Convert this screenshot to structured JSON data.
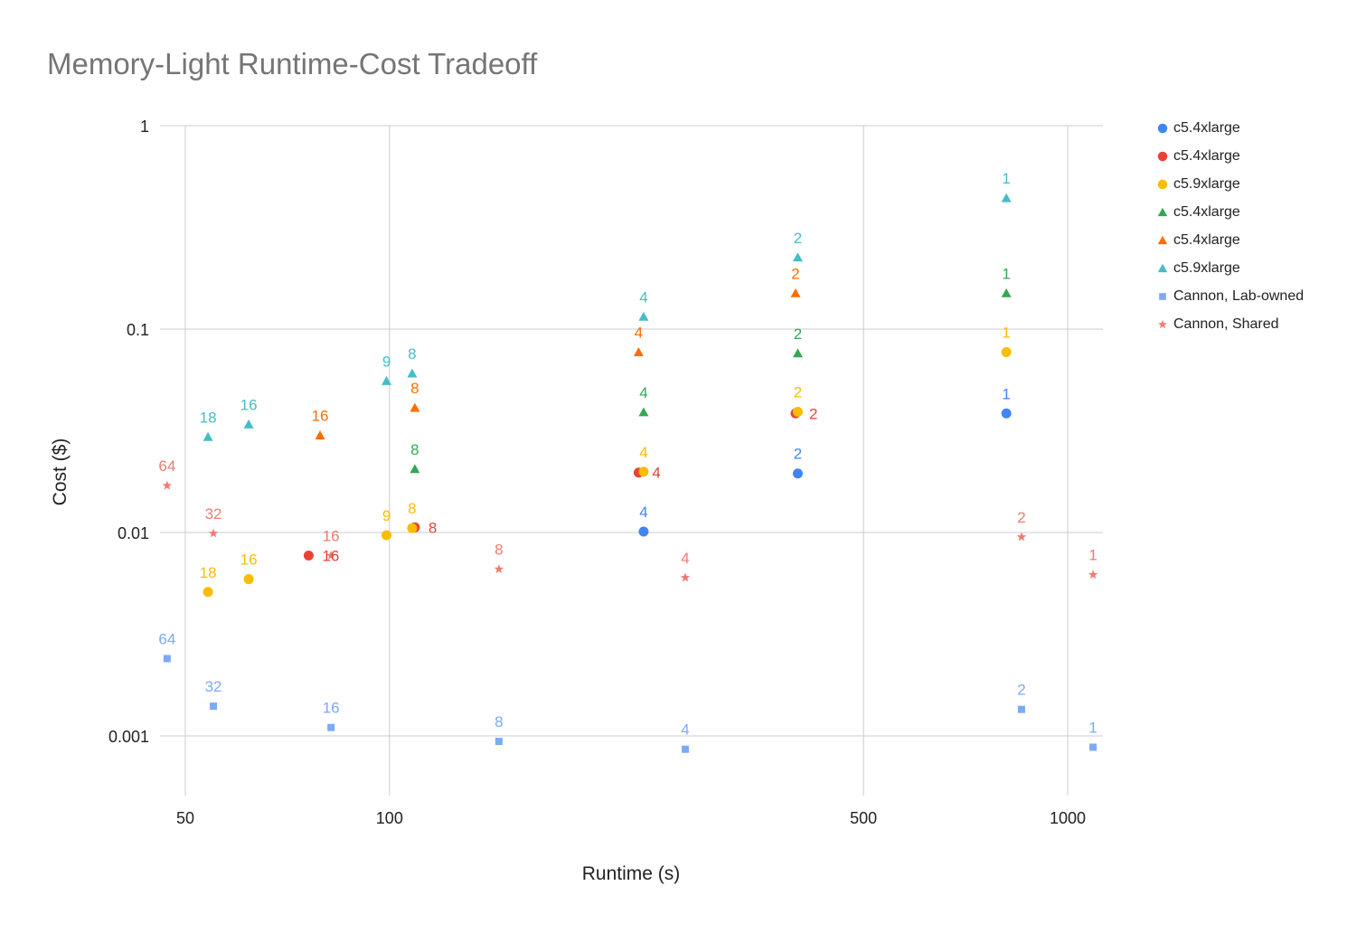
{
  "chart_data": {
    "type": "scatter",
    "title": "Memory-Light Runtime-Cost Tradeoff",
    "xlabel": "Runtime (s)",
    "ylabel": "Cost ($)",
    "x_scale": "log",
    "y_scale": "log",
    "xlim": [
      45,
      1100
    ],
    "ylim": [
      0.0005,
      1
    ],
    "x_ticks": [
      {
        "value": 50,
        "label": "50"
      },
      {
        "value": 100,
        "label": "100"
      },
      {
        "value": 500,
        "label": "500"
      },
      {
        "value": 1000,
        "label": "1000"
      }
    ],
    "y_ticks": [
      {
        "value": 0.001,
        "label": "0.001"
      },
      {
        "value": 0.01,
        "label": "0.01"
      },
      {
        "value": 0.1,
        "label": "0.1"
      },
      {
        "value": 1,
        "label": "1"
      }
    ],
    "grid": true,
    "legend_position": "right",
    "series": [
      {
        "name": "c5.4xlarge",
        "marker": "circle",
        "color": "#4285f4",
        "points": [
          {
            "x": 237,
            "y": 0.0101,
            "label": "4",
            "label_pos": "above"
          },
          {
            "x": 400,
            "y": 0.0195,
            "label": "2",
            "label_pos": "above"
          },
          {
            "x": 812,
            "y": 0.0385,
            "label": "1",
            "label_pos": "above"
          }
        ]
      },
      {
        "name": "c5.4xlarge",
        "marker": "circle",
        "color": "#ea4335",
        "points": [
          {
            "x": 76,
            "y": 0.0077,
            "label": "16",
            "label_pos": "right"
          },
          {
            "x": 109,
            "y": 0.0106,
            "label": "8",
            "label_pos": "right"
          },
          {
            "x": 233,
            "y": 0.0197,
            "label": "4",
            "label_pos": "right"
          },
          {
            "x": 397,
            "y": 0.0385,
            "label": "2",
            "label_pos": "right"
          }
        ]
      },
      {
        "name": "c5.9xlarge",
        "marker": "circle",
        "color": "#fbbc04",
        "points": [
          {
            "x": 54,
            "y": 0.0051,
            "label": "18",
            "label_pos": "above"
          },
          {
            "x": 62,
            "y": 0.0059,
            "label": "16",
            "label_pos": "above"
          },
          {
            "x": 99,
            "y": 0.0097,
            "label": "9",
            "label_pos": "above"
          },
          {
            "x": 108,
            "y": 0.0105,
            "label": "8",
            "label_pos": "above"
          },
          {
            "x": 237,
            "y": 0.0199,
            "label": "4",
            "label_pos": "above"
          },
          {
            "x": 400,
            "y": 0.0392,
            "label": "2",
            "label_pos": "above"
          },
          {
            "x": 812,
            "y": 0.077,
            "label": "1",
            "label_pos": "above"
          }
        ]
      },
      {
        "name": "c5.4xlarge",
        "marker": "triangle",
        "color": "#34a853",
        "points": [
          {
            "x": 109,
            "y": 0.0205,
            "label": "8",
            "label_pos": "above"
          },
          {
            "x": 237,
            "y": 0.039,
            "label": "4",
            "label_pos": "above"
          },
          {
            "x": 400,
            "y": 0.076,
            "label": "2",
            "label_pos": "above"
          },
          {
            "x": 812,
            "y": 0.15,
            "label": "1",
            "label_pos": "above"
          }
        ]
      },
      {
        "name": "c5.4xlarge",
        "marker": "triangle",
        "color": "#ff6d01",
        "points": [
          {
            "x": 79,
            "y": 0.03,
            "label": "16",
            "label_pos": "above"
          },
          {
            "x": 109,
            "y": 0.041,
            "label": "8",
            "label_pos": "above"
          },
          {
            "x": 233,
            "y": 0.077,
            "label": "4",
            "label_pos": "above"
          },
          {
            "x": 397,
            "y": 0.15,
            "label": "2",
            "label_pos": "above"
          }
        ]
      },
      {
        "name": "c5.9xlarge",
        "marker": "triangle",
        "color": "#46bdc6",
        "points": [
          {
            "x": 54,
            "y": 0.0295,
            "label": "18",
            "label_pos": "above"
          },
          {
            "x": 62,
            "y": 0.034,
            "label": "16",
            "label_pos": "above"
          },
          {
            "x": 99,
            "y": 0.0555,
            "label": "9",
            "label_pos": "above"
          },
          {
            "x": 108,
            "y": 0.0605,
            "label": "8",
            "label_pos": "above"
          },
          {
            "x": 237,
            "y": 0.115,
            "label": "4",
            "label_pos": "above"
          },
          {
            "x": 400,
            "y": 0.225,
            "label": "2",
            "label_pos": "above"
          },
          {
            "x": 812,
            "y": 0.44,
            "label": "1",
            "label_pos": "above"
          }
        ]
      },
      {
        "name": "Cannon, Lab-owned",
        "marker": "square",
        "color": "#7baaf7",
        "points": [
          {
            "x": 47,
            "y": 0.0024,
            "label": "64",
            "label_pos": "above"
          },
          {
            "x": 55,
            "y": 0.0014,
            "label": "32",
            "label_pos": "above"
          },
          {
            "x": 82,
            "y": 0.0011,
            "label": "16",
            "label_pos": "above"
          },
          {
            "x": 145,
            "y": 0.00094,
            "label": "8",
            "label_pos": "above"
          },
          {
            "x": 273,
            "y": 0.00086,
            "label": "4",
            "label_pos": "above"
          },
          {
            "x": 855,
            "y": 0.00135,
            "label": "2",
            "label_pos": "above"
          },
          {
            "x": 1090,
            "y": 0.00088,
            "label": "1",
            "label_pos": "above"
          }
        ]
      },
      {
        "name": "Cannon, Shared",
        "marker": "star",
        "color": "#f07b72",
        "points": [
          {
            "x": 47,
            "y": 0.017,
            "label": "64",
            "label_pos": "above"
          },
          {
            "x": 55,
            "y": 0.0099,
            "label": "32",
            "label_pos": "above"
          },
          {
            "x": 82,
            "y": 0.0077,
            "label": "16",
            "label_pos": "above"
          },
          {
            "x": 145,
            "y": 0.0066,
            "label": "8",
            "label_pos": "above"
          },
          {
            "x": 273,
            "y": 0.006,
            "label": "4",
            "label_pos": "above"
          },
          {
            "x": 855,
            "y": 0.0095,
            "label": "2",
            "label_pos": "above"
          },
          {
            "x": 1090,
            "y": 0.0062,
            "label": "1",
            "label_pos": "above"
          }
        ]
      }
    ]
  }
}
